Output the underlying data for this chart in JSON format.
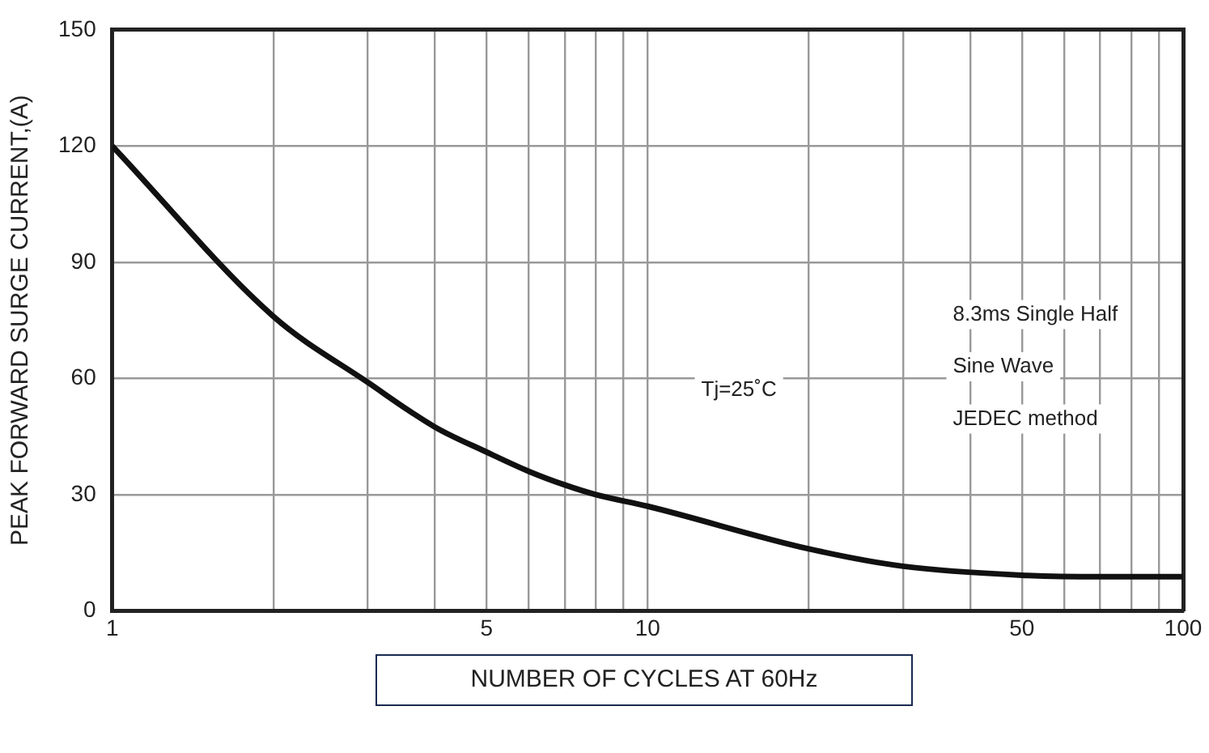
{
  "chart_data": {
    "type": "line",
    "xlabel": "NUMBER OF CYCLES AT 60Hz",
    "ylabel": "PEAK FORWARD SURGE CURRENT,(A)",
    "x": [
      1,
      2,
      3,
      4,
      5,
      6,
      7,
      8,
      10,
      20,
      30,
      50,
      70,
      100
    ],
    "series": [
      {
        "color": "#111111",
        "values": [
          120,
          76,
          59,
          47.5,
          41,
          36,
          32.5,
          30,
          27,
          16,
          11.5,
          9.2,
          8.8,
          8.8
        ]
      }
    ],
    "log": "x",
    "xlim": [
      1,
      100
    ],
    "ylim": [
      0,
      150
    ],
    "xticks": [
      1,
      {
        "value": 2,
        "label": null
      },
      {
        "value": 3,
        "label": null
      },
      {
        "value": 4,
        "label": null
      },
      5,
      {
        "value": 6,
        "label": null
      },
      {
        "value": 7,
        "label": null
      },
      {
        "value": 8,
        "label": null
      },
      {
        "value": 9,
        "label": null
      },
      10,
      {
        "value": 20,
        "label": null
      },
      {
        "value": 30,
        "label": null
      },
      {
        "value": 40,
        "label": null
      },
      50,
      {
        "value": 60,
        "label": null
      },
      {
        "value": 70,
        "label": null
      },
      {
        "value": 80,
        "label": null
      },
      {
        "value": 90,
        "label": null
      },
      100
    ],
    "yticks": [
      0,
      30,
      60,
      90,
      120,
      150
    ],
    "grid": true,
    "marker": "none",
    "line_style": "solid",
    "annotations": [
      "Tj=25˚C",
      "8.3ms Single Half",
      "Sine Wave",
      "JEDEC method"
    ]
  }
}
